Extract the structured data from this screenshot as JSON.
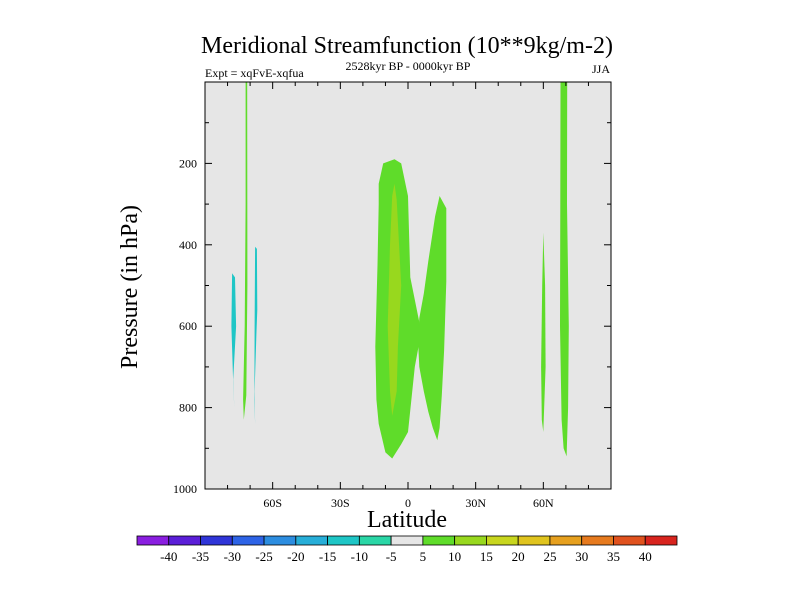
{
  "chart_data": {
    "type": "contour",
    "title": "Meridional Streamfunction (10**9kg/m-2)",
    "left_label": "Expt = xqFvE-xqfua",
    "center_label": "2528kyr BP - 0000kyr BP",
    "right_label": "JJA",
    "xlabel": "Latitude",
    "ylabel": "Pressure (in hPa)",
    "xlim": [
      -90,
      90
    ],
    "ylim": [
      0,
      1000
    ],
    "y_reversed": true,
    "x_ticks": [
      {
        "value": -60,
        "label": "60S"
      },
      {
        "value": -30,
        "label": "30S"
      },
      {
        "value": 0,
        "label": "0"
      },
      {
        "value": 30,
        "label": "30N"
      },
      {
        "value": 60,
        "label": "60N"
      }
    ],
    "y_ticks": [
      {
        "value": 200,
        "label": "200"
      },
      {
        "value": 400,
        "label": "400"
      },
      {
        "value": 600,
        "label": "600"
      },
      {
        "value": 800,
        "label": "800"
      },
      {
        "value": 1000,
        "label": "1000"
      }
    ],
    "background_color": "#e6e6e6",
    "colorbar": {
      "levels": [
        "-40",
        "-35",
        "-30",
        "-25",
        "-20",
        "-15",
        "-10",
        "-5",
        "5",
        "10",
        "15",
        "20",
        "25",
        "30",
        "35",
        "40"
      ],
      "colors": [
        "#8a1ee0",
        "#5b1ed8",
        "#2f35d8",
        "#2d63e6",
        "#2c8de0",
        "#27aed8",
        "#1ec6c6",
        "#2ad6a6",
        "#e6e6e6",
        "#5fdc2a",
        "#98d81e",
        "#c8d61e",
        "#e0c41e",
        "#e6a01e",
        "#e67a1e",
        "#e0521e",
        "#d8241e"
      ]
    },
    "contour_regions": [
      {
        "name": "sh-high-lat-cell-a",
        "color": "#1ec6c6",
        "lat": [
          -78,
          -78.3,
          -77.5,
          -77,
          -77.5,
          -76.2,
          -76.7
        ],
        "pressure": [
          470,
          600,
          740,
          800,
          730,
          600,
          480
        ]
      },
      {
        "name": "sh-mid-lat-cell-a",
        "color": "#1ec6c6",
        "lat": [
          -67.8,
          -68,
          -68.1,
          -67.8,
          -68,
          -67.2,
          -66.8,
          -67
        ],
        "pressure": [
          405,
          600,
          780,
          840,
          760,
          620,
          560,
          410
        ]
      },
      {
        "name": "sh-jet-column",
        "color": "#5fdc2a",
        "lat": [
          -72,
          -72,
          -72.4,
          -73.1,
          -72.8,
          -71.7,
          -71.2,
          -71.3
        ],
        "pressure": [
          0,
          300,
          600,
          780,
          830,
          770,
          500,
          0
        ]
      },
      {
        "name": "tropical-cell-a",
        "color": "#5fdc2a",
        "lat": [
          -13,
          -11,
          -6,
          -3,
          0,
          1,
          5,
          5,
          3,
          0,
          -3,
          -7,
          -10,
          -13,
          -14,
          -14.5,
          -13.5,
          -13
        ],
        "pressure": [
          250,
          200,
          190,
          200,
          280,
          480,
          590,
          640,
          700,
          860,
          890,
          925,
          910,
          840,
          780,
          650,
          450,
          300
        ]
      },
      {
        "name": "tropical-cell-b",
        "color": "#98d81e",
        "lat": [
          -7,
          -6,
          -5,
          -3,
          -4.5,
          -5,
          -7,
          -8,
          -9,
          -8
        ],
        "pressure": [
          280,
          250,
          290,
          500,
          650,
          760,
          820,
          760,
          600,
          400
        ]
      },
      {
        "name": "tropical-cell-c",
        "color": "#5fdc2a",
        "lat": [
          5,
          7,
          9,
          12,
          14,
          17,
          17,
          16,
          15,
          14,
          13,
          11,
          9,
          7,
          5,
          4.5
        ],
        "pressure": [
          580,
          520,
          440,
          330,
          280,
          310,
          490,
          660,
          770,
          850,
          880,
          850,
          810,
          760,
          700,
          640
        ]
      },
      {
        "name": "nh-mid-lat-cell-a",
        "color": "#5fdc2a",
        "lat": [
          60,
          59.5,
          59,
          59.3,
          60,
          61,
          60.8
        ],
        "pressure": [
          370,
          500,
          700,
          830,
          860,
          700,
          500
        ]
      },
      {
        "name": "nh-jet-column",
        "color": "#5fdc2a",
        "lat": [
          67.6,
          67.5,
          67.4,
          68.1,
          69,
          70.3,
          71,
          71.3,
          70.5,
          70.6
        ],
        "pressure": [
          0,
          300,
          600,
          830,
          900,
          920,
          800,
          600,
          300,
          0
        ]
      }
    ]
  }
}
